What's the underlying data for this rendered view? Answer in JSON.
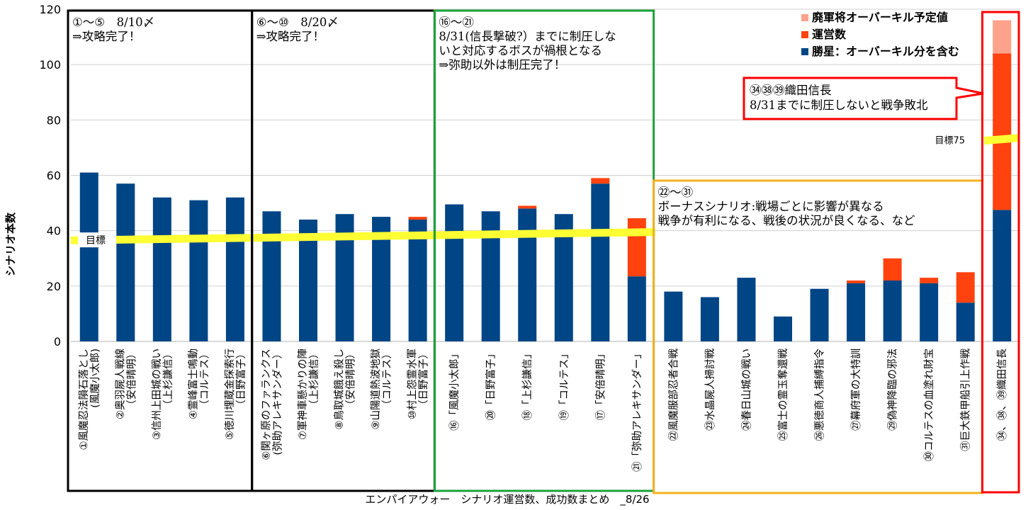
{
  "chart_data": {
    "type": "bar",
    "title": "",
    "xlabel": "エンパイアウォー　シナリオ運営数、成功数まとめ　_8/26",
    "ylabel": "シナリオ本数",
    "ylim": [
      0,
      120
    ],
    "yticks": [
      0,
      20,
      40,
      60,
      80,
      100,
      120
    ],
    "grid": true,
    "legend_position": "top-right",
    "categories": [
      "①風魔忍法隕石落とし\n(風魔小太郎)",
      "②奥羽屍人戦線\n（安倍晴明）",
      "③信州上田城の戦い\n（上杉謙信）",
      "④霊峰富士鳴動\n（コルテス）",
      "⑤徳川埋蔵金探索行\n（日野富子）",
      "⑥関ヶ原のファランクス\n(弥助アレキサンダー）",
      "⑦軍神車懸かりの陣\n（上杉謙信）",
      "⑧鳥取城餓え殺し\n（安倍晴明）",
      "⑨山陽道熱波地獄\n（コルテス）",
      "⑩村上怨霊水軍\n（日野富子）",
      "⑯「風魔小太郎」",
      "⑳「日野富子」",
      "⑱「上杉謙信」",
      "⑲「コルテス」",
      "⑰「安倍晴明」",
      "㉑「弥助アレキサンダー」",
      "㉒風魔服部忍者合戦",
      "㉓水晶屍人掃討戦",
      "㉔春日山城の戦い",
      "㉕富士の霊玉奪還戦",
      "㉖悪徳商人捕縛指令",
      "㉗幕府軍の大特訓",
      "㉙偽神降臨の邪法",
      "㉚コルテスの血塗れ財宝",
      "㉛巨大鉄甲船引上作戦",
      "㉞、㊳、㊴織田信長"
    ],
    "series": [
      {
        "name": "勝星：オーバーキル分を含む",
        "color": "#004586",
        "values": [
          61,
          57,
          52,
          51,
          52,
          47,
          44,
          46,
          45,
          44,
          49.5,
          47,
          48,
          46,
          57,
          23.5,
          18,
          16,
          23,
          9,
          19,
          21,
          22,
          21,
          14,
          47.5
        ]
      },
      {
        "name": "運営数",
        "color": "#ff420e",
        "values": [
          0,
          0,
          0,
          0,
          0,
          0,
          0,
          0,
          0,
          1,
          0,
          0,
          1,
          0,
          2,
          21,
          0,
          0,
          0,
          0,
          0,
          1,
          8,
          2,
          11,
          56.5
        ]
      },
      {
        "name": "廃軍将オーバーキル予定値",
        "color": "#ffa28b",
        "values": [
          0,
          0,
          0,
          0,
          0,
          0,
          0,
          0,
          0,
          0,
          0,
          0,
          0,
          0,
          0,
          0,
          0,
          0,
          0,
          0,
          0,
          0,
          0,
          0,
          0,
          12
        ]
      }
    ],
    "target_line": {
      "label": "目標",
      "color": "#ffff33",
      "points": [
        [
          0,
          36.5
        ],
        [
          15,
          39.5
        ]
      ]
    },
    "target_75": {
      "label": "目標75",
      "value": 72.5
    },
    "groups": [
      {
        "from": 0,
        "to": 4,
        "color": "#000000",
        "lines": [
          "①～⑤　8/10〆",
          "⇒攻略完了！"
        ]
      },
      {
        "from": 5,
        "to": 9,
        "color": "#000000",
        "lines": [
          "⑥～⑩　8/20〆",
          "⇒攻略完了！"
        ]
      },
      {
        "from": 10,
        "to": 15,
        "color": "#1aa33a",
        "lines": [
          "⑯～㉑",
          "8/31(信長撃破?）までに制圧しな",
          "いと対応するボスが禍根となる",
          "⇒弥助以外は制圧完了！"
        ]
      },
      {
        "from": 16,
        "to": 24,
        "color": "#f5b120",
        "lines": [
          "㉒～㉛",
          "ボーナスシナリオ:戦場ごとに影響が異なる",
          "戦争が有利になる、戦後の状況が良くなる、など"
        ]
      },
      {
        "from": 25,
        "to": 25,
        "color": "#ff0000",
        "lines": []
      }
    ],
    "callout": {
      "color": "#ff0000",
      "lines": [
        "㉞㊳㊴織田信長",
        "8/31までに制圧しないと戦争敗北"
      ]
    }
  }
}
